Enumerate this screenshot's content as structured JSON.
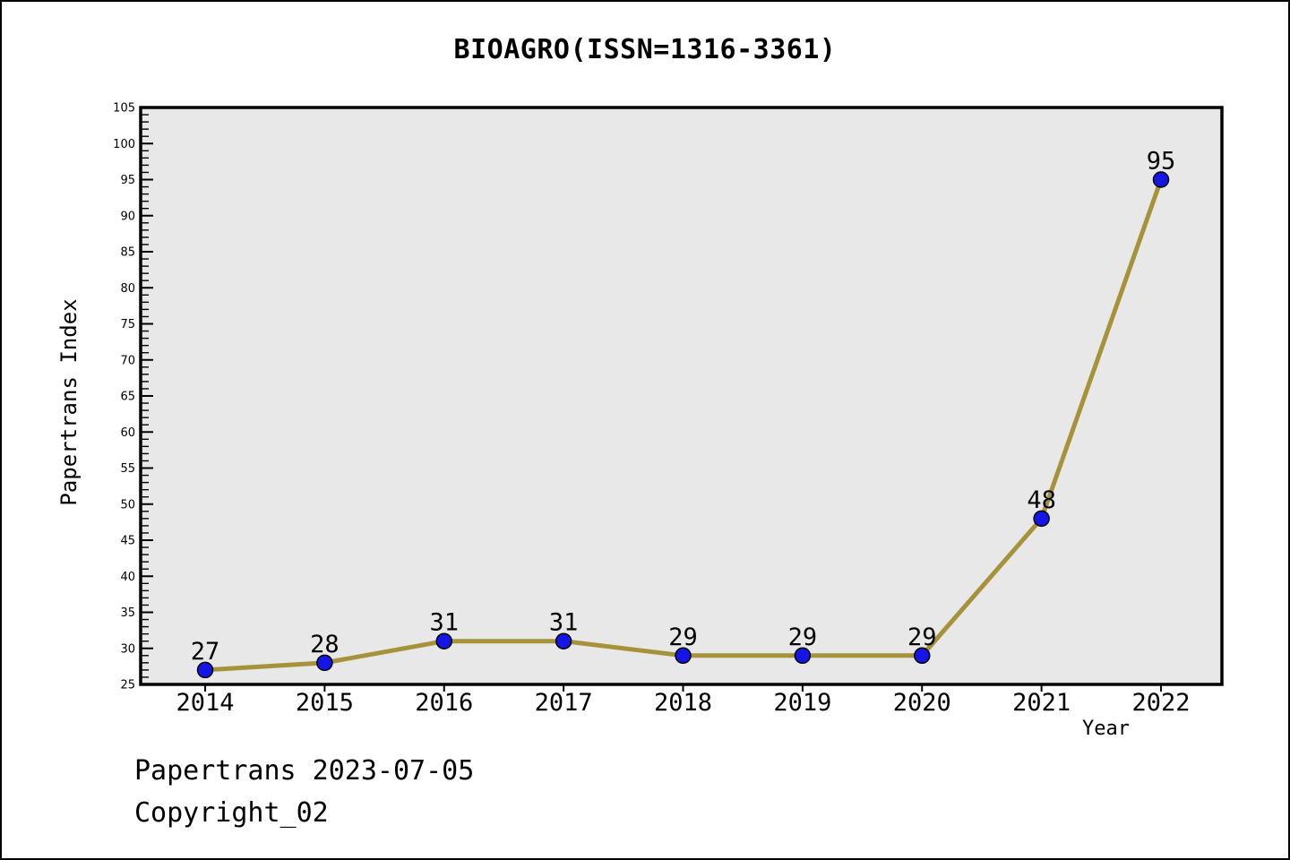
{
  "figure": {
    "footer_line1": "Papertrans 2023-07-05",
    "footer_line2": "Copyright_02"
  },
  "chart_data": {
    "type": "line",
    "title": "BIOAGRO(ISSN=1316-3361)",
    "xlabel": "Year",
    "ylabel": "Papertrans Index",
    "x": [
      2014,
      2015,
      2016,
      2017,
      2018,
      2019,
      2020,
      2021,
      2022
    ],
    "values": [
      27,
      28,
      31,
      31,
      29,
      29,
      29,
      48,
      95
    ],
    "data_labels": [
      "27",
      "28",
      "31",
      "31",
      "29",
      "29",
      "29",
      "48",
      "95"
    ],
    "xlim": [
      2013.46,
      2022.51
    ],
    "ylim": [
      25,
      105
    ],
    "ytick_major_step": 5,
    "ytick_minor_step": 1,
    "grid": false,
    "legend": null,
    "colors": {
      "line": "#a6923b",
      "marker_fill": "#1515e6",
      "marker_edge": "#000000",
      "plot_bg": "#e8e8e8",
      "figure_bg": "#ffffff",
      "axis": "#000000",
      "text": "#000000"
    }
  }
}
